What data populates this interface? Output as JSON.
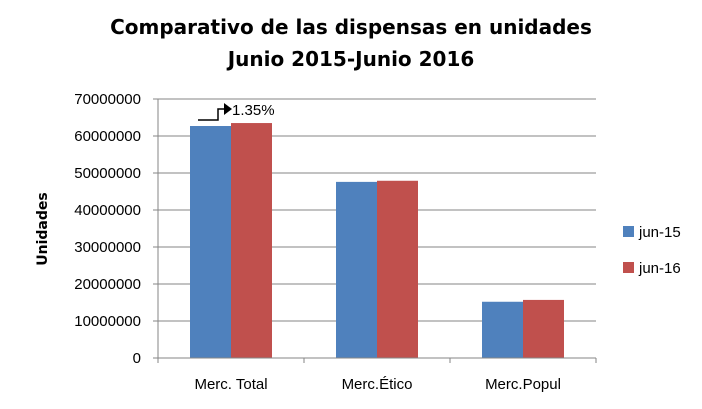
{
  "chart_data": {
    "type": "bar",
    "title": [
      "Comparativo de las dispensas en unidades",
      "Junio 2015-Junio 2016"
    ],
    "xlabel": "",
    "ylabel": "Unidades",
    "ylim": [
      0,
      70000000
    ],
    "yticks": [
      0,
      10000000,
      20000000,
      30000000,
      40000000,
      50000000,
      60000000,
      70000000
    ],
    "categories": [
      "Merc. Total",
      "Merc.Ético",
      "Merc.Popul"
    ],
    "series": [
      {
        "name": "jun-15",
        "color": "#4F81BD",
        "values": [
          62700000,
          47600000,
          15200000
        ]
      },
      {
        "name": "jun-16",
        "color": "#C0504D",
        "values": [
          63500000,
          47900000,
          15700000
        ]
      }
    ],
    "grid": true,
    "legend": "right",
    "annotation": {
      "text": "1.35%",
      "category": "Merc. Total"
    }
  }
}
